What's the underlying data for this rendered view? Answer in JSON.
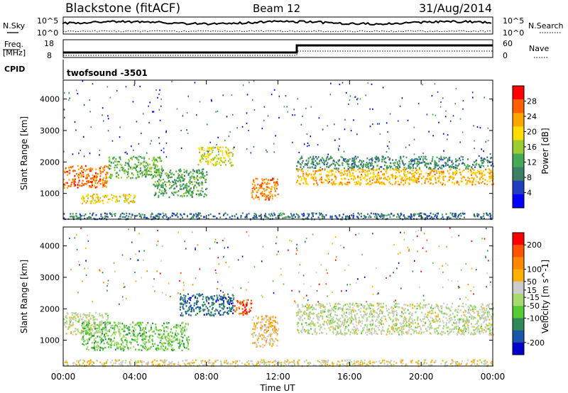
{
  "header": {
    "station": "Blackstone (fitACF)",
    "beam": "Beam 12",
    "date": "31/Aug/2014"
  },
  "top_panels": {
    "nsky_label": "N.Sky",
    "nsearch_label": "N.Search",
    "noise_ticks": [
      "10^5",
      "10^0"
    ],
    "freq_label_line1": "Freq.",
    "freq_label_line2": "[MHz]",
    "freq_ticks": [
      "18",
      "8"
    ],
    "nave_label": "Nave",
    "nave_ticks": [
      "60",
      "0"
    ],
    "cpid_label": "CPID",
    "cpid_value": "twofsound -3501"
  },
  "chart_data": [
    {
      "type": "heatmap",
      "title": "",
      "ylabel": "Slant Range [km]",
      "xlabel": "",
      "x_range_hours": [
        0,
        24
      ],
      "ylim": [
        180,
        4600
      ],
      "y_ticks": [
        1000,
        2000,
        3000,
        4000
      ],
      "colorbar": {
        "label": "Power [dB]",
        "range": [
          0,
          32
        ],
        "ticks": [
          4,
          8,
          12,
          16,
          20,
          24,
          28
        ],
        "colors": [
          "#0000ff",
          "#1f3fbf",
          "#3d7f66",
          "#44aa55",
          "#9acd32",
          "#ffdd00",
          "#ffa500",
          "#ff6000",
          "#ff0000"
        ]
      },
      "regions": [
        {
          "t": [
            0.0,
            2.5
          ],
          "r": [
            1200,
            1900
          ],
          "level": 26
        },
        {
          "t": [
            2.5,
            5.5
          ],
          "r": [
            1500,
            2200
          ],
          "level": 14
        },
        {
          "t": [
            1.0,
            4.0
          ],
          "r": [
            700,
            1000
          ],
          "level": 20
        },
        {
          "t": [
            5.0,
            8.0
          ],
          "r": [
            900,
            1800
          ],
          "level": 12
        },
        {
          "t": [
            7.5,
            9.5
          ],
          "r": [
            1900,
            2500
          ],
          "level": 18
        },
        {
          "t": [
            10.5,
            12.0
          ],
          "r": [
            800,
            1500
          ],
          "level": 25
        },
        {
          "t": [
            13.0,
            24.0
          ],
          "r": [
            1300,
            1800
          ],
          "level": 22
        },
        {
          "t": [
            13.0,
            24.0
          ],
          "r": [
            1800,
            2200
          ],
          "level": 10
        },
        {
          "t": [
            0.0,
            24.0
          ],
          "r": [
            200,
            400
          ],
          "level": 8
        }
      ]
    },
    {
      "type": "heatmap",
      "title": "",
      "ylabel": "Slant Range [km]",
      "xlabel": "Time UT",
      "x_range_hours": [
        0,
        24
      ],
      "ylim": [
        180,
        4600
      ],
      "y_ticks": [
        1000,
        2000,
        3000,
        4000
      ],
      "x_ticks": [
        "00:00",
        "04:00",
        "08:00",
        "12:00",
        "16:00",
        "20:00",
        "00:00"
      ],
      "colorbar": {
        "label": "Velocity [m s^-1]",
        "range": [
          -250,
          250
        ],
        "ticks": [
          200,
          100,
          50,
          15,
          -15,
          -50,
          -100,
          -200
        ],
        "colors": [
          "#0000cc",
          "#1a55aa",
          "#2e8b57",
          "#55cc33",
          "#a8d870",
          "#cccccc",
          "#ffb000",
          "#ff8800",
          "#ff5500",
          "#ff0000"
        ]
      },
      "regions": [
        {
          "t": [
            0.0,
            2.5
          ],
          "r": [
            1200,
            1900
          ],
          "level": 0
        },
        {
          "t": [
            1.0,
            7.0
          ],
          "r": [
            700,
            1600
          ],
          "level": -60
        },
        {
          "t": [
            6.5,
            9.5
          ],
          "r": [
            1800,
            2500
          ],
          "level": -160
        },
        {
          "t": [
            9.5,
            10.5
          ],
          "r": [
            1800,
            2300
          ],
          "level": 180
        },
        {
          "t": [
            10.5,
            12.0
          ],
          "r": [
            800,
            1800
          ],
          "level": 60
        },
        {
          "t": [
            13.0,
            24.0
          ],
          "r": [
            1200,
            2200
          ],
          "level": 0
        },
        {
          "t": [
            0.0,
            24.0
          ],
          "r": [
            200,
            400
          ],
          "level": 40
        }
      ]
    }
  ]
}
